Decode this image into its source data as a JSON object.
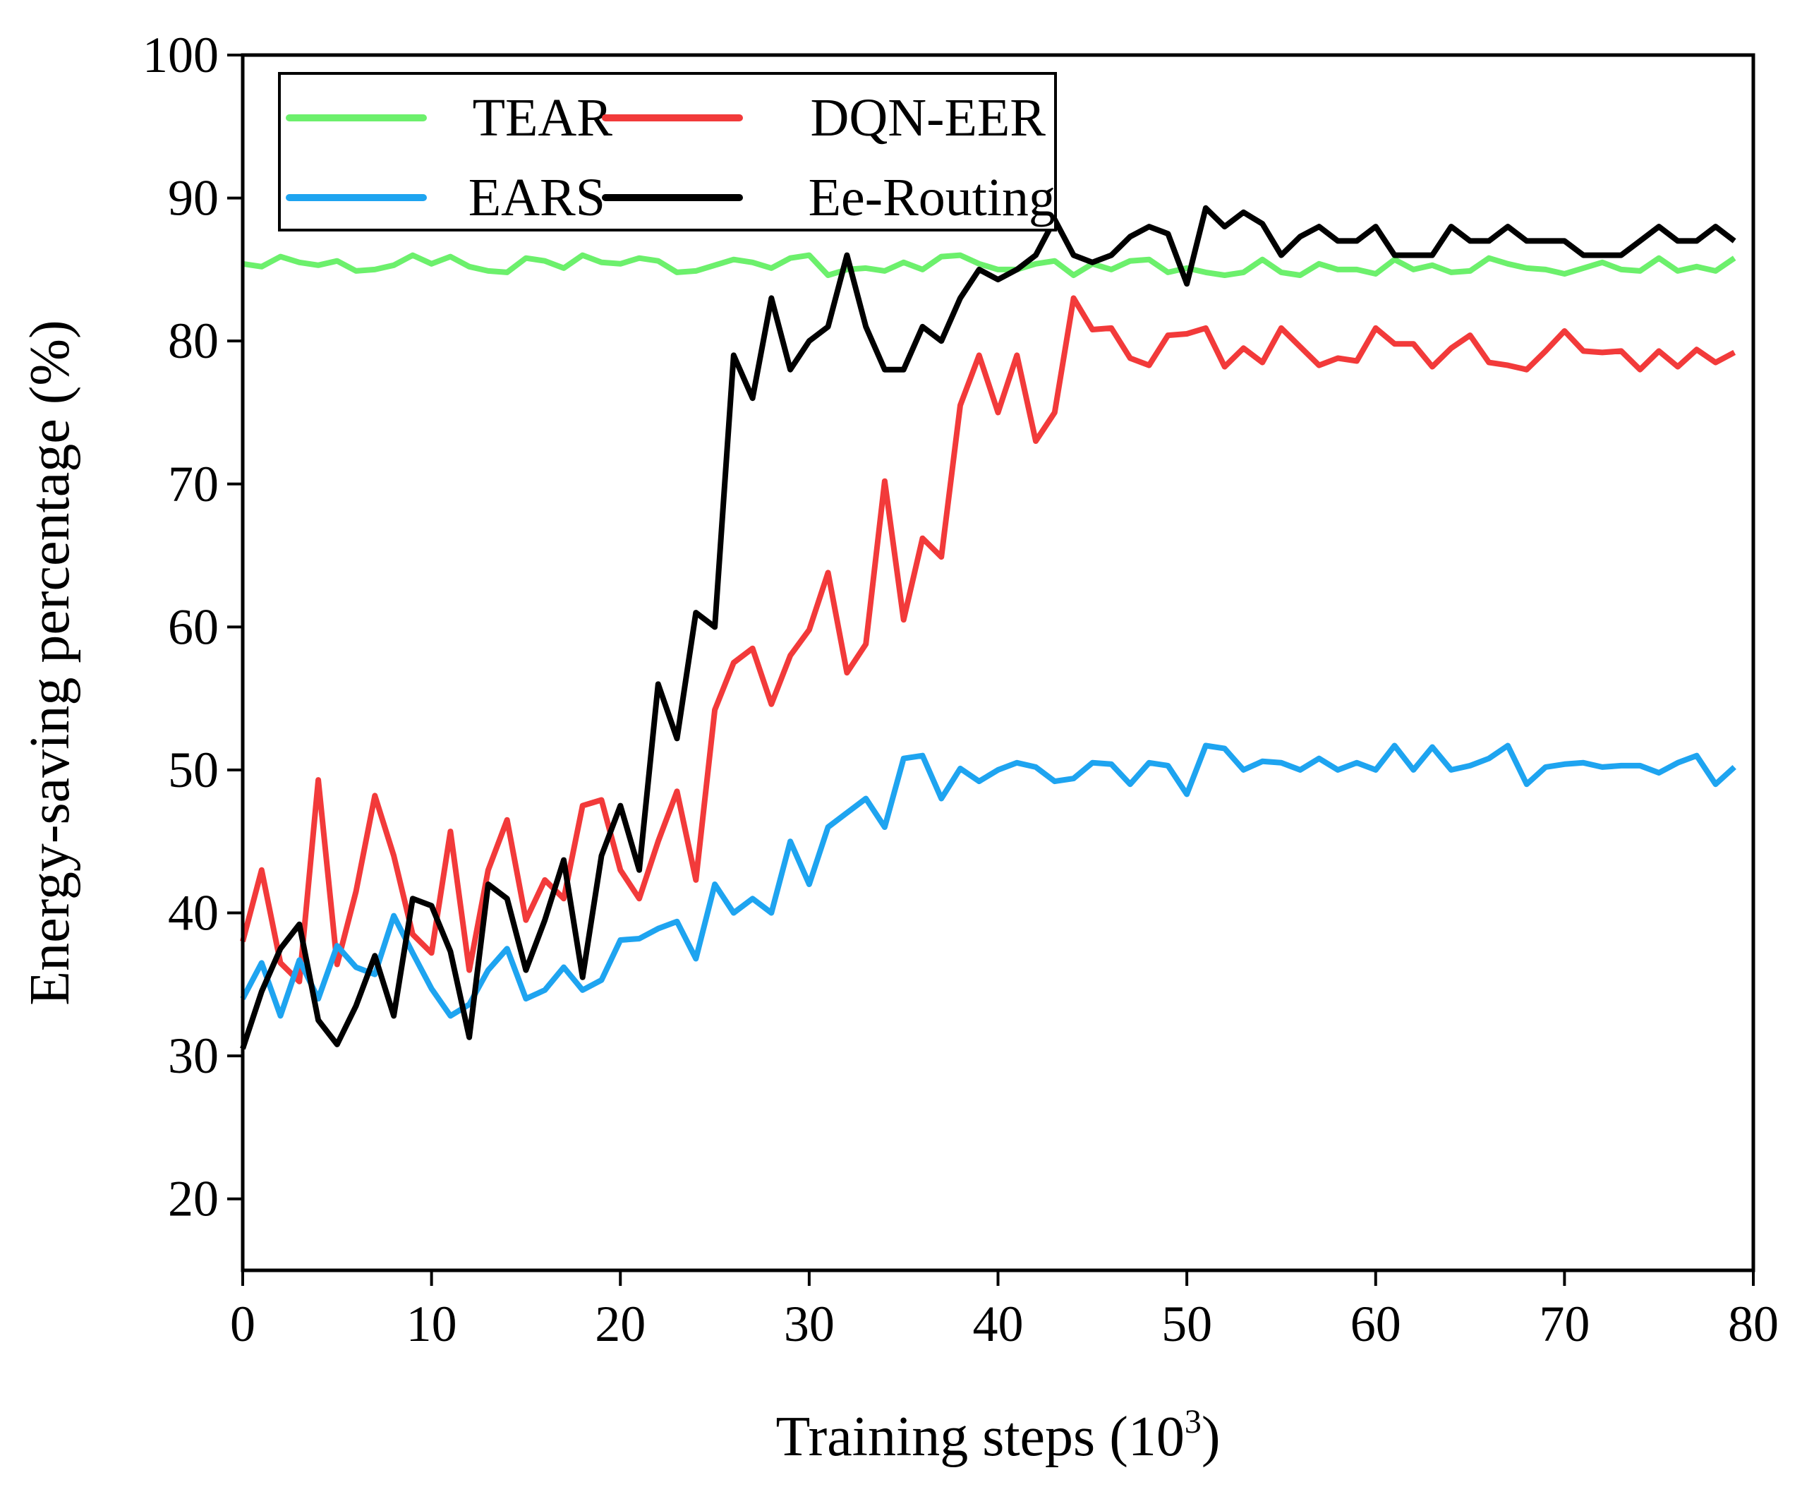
{
  "chart_data": {
    "type": "line",
    "title": "",
    "xlabel": "Training steps (10",
    "xlabel_sup": "3",
    "xlabel_suffix": ")",
    "ylabel": "Energy-saving percentage (%)",
    "xlim": [
      0,
      80
    ],
    "ylim": [
      15,
      100
    ],
    "xticks": [
      0,
      10,
      20,
      30,
      40,
      50,
      60,
      70,
      80
    ],
    "yticks": [
      20,
      30,
      40,
      50,
      60,
      70,
      80,
      90,
      100
    ],
    "grid": false,
    "legend_position": "top-left",
    "series": [
      {
        "name": "TEAR",
        "color": "#6cf06c",
        "x": [
          0,
          1,
          2,
          3,
          4,
          5,
          6,
          7,
          8,
          9,
          10,
          11,
          12,
          13,
          14,
          15,
          16,
          17,
          18,
          19,
          20,
          21,
          22,
          23,
          24,
          25,
          26,
          27,
          28,
          29,
          30,
          31,
          32,
          33,
          34,
          35,
          36,
          37,
          38,
          39,
          40,
          41,
          42,
          43,
          44,
          45,
          46,
          47,
          48,
          49,
          50,
          51,
          52,
          53,
          54,
          55,
          56,
          57,
          58,
          59,
          60,
          61,
          62,
          63,
          64,
          65,
          66,
          67,
          68,
          69,
          70,
          71,
          72,
          73,
          74,
          75,
          76,
          77,
          78,
          79
        ],
        "y": [
          85.4,
          85.2,
          85.9,
          85.5,
          85.3,
          85.6,
          84.9,
          85.0,
          85.3,
          86.0,
          85.4,
          85.9,
          85.2,
          84.9,
          84.8,
          85.8,
          85.6,
          85.1,
          86.0,
          85.5,
          85.4,
          85.8,
          85.6,
          84.8,
          84.9,
          85.3,
          85.7,
          85.5,
          85.1,
          85.8,
          86.0,
          84.6,
          85.0,
          85.1,
          84.9,
          85.5,
          85.0,
          85.9,
          86.0,
          85.4,
          85.0,
          85.0,
          85.4,
          85.6,
          84.6,
          85.4,
          85.0,
          85.6,
          85.7,
          84.8,
          85.1,
          84.8,
          84.6,
          84.8,
          85.7,
          84.8,
          84.6,
          85.4,
          85.0,
          85.0,
          84.7,
          85.7,
          85.0,
          85.3,
          84.8,
          84.9,
          85.8,
          85.4,
          85.1,
          85.0,
          84.7,
          85.1,
          85.5,
          85.0,
          84.9,
          85.8,
          84.9,
          85.2,
          84.9,
          85.8
        ]
      },
      {
        "name": "DQN-EER",
        "color": "#f23a3a",
        "x": [
          0,
          1,
          2,
          3,
          4,
          5,
          6,
          7,
          8,
          9,
          10,
          11,
          12,
          13,
          14,
          15,
          16,
          17,
          18,
          19,
          20,
          21,
          22,
          23,
          24,
          25,
          26,
          27,
          28,
          29,
          30,
          31,
          32,
          33,
          34,
          35,
          36,
          37,
          38,
          39,
          40,
          41,
          42,
          43,
          44,
          45,
          46,
          47,
          48,
          49,
          50,
          51,
          52,
          53,
          54,
          55,
          56,
          57,
          58,
          59,
          60,
          61,
          62,
          63,
          64,
          65,
          66,
          67,
          68,
          69,
          70,
          71,
          72,
          73,
          74,
          75,
          76,
          77,
          78,
          79
        ],
        "y": [
          38,
          43,
          36.5,
          35.2,
          49.3,
          36.4,
          41.5,
          48.2,
          44,
          38.5,
          37.2,
          45.7,
          36,
          43,
          46.5,
          39.5,
          42.3,
          41,
          47.5,
          47.9,
          43,
          41,
          45,
          48.5,
          42.3,
          54.2,
          57.5,
          58.5,
          54.6,
          58,
          59.8,
          63.8,
          56.8,
          58.8,
          70.2,
          60.5,
          66.2,
          64.9,
          75.5,
          79,
          75,
          79,
          73,
          75,
          83,
          80.8,
          80.9,
          78.8,
          78.3,
          80.4,
          80.5,
          80.9,
          78.2,
          79.5,
          78.5,
          80.9,
          79.6,
          78.3,
          78.8,
          78.6,
          80.9,
          79.8,
          79.8,
          78.2,
          79.5,
          80.4,
          78.5,
          78.3,
          78,
          79.3,
          80.7,
          79.3,
          79.2,
          79.3,
          78,
          79.3,
          78.2,
          79.4,
          78.5,
          79.2
        ]
      },
      {
        "name": "EARS",
        "color": "#1ea4f0",
        "x": [
          0,
          1,
          2,
          3,
          4,
          5,
          6,
          7,
          8,
          9,
          10,
          11,
          12,
          13,
          14,
          15,
          16,
          17,
          18,
          19,
          20,
          21,
          22,
          23,
          24,
          25,
          26,
          27,
          28,
          29,
          30,
          31,
          32,
          33,
          34,
          35,
          36,
          37,
          38,
          39,
          40,
          41,
          42,
          43,
          44,
          45,
          46,
          47,
          48,
          49,
          50,
          51,
          52,
          53,
          54,
          55,
          56,
          57,
          58,
          59,
          60,
          61,
          62,
          63,
          64,
          65,
          66,
          67,
          68,
          69,
          70,
          71,
          72,
          73,
          74,
          75,
          76,
          77,
          78,
          79
        ],
        "y": [
          34,
          36.5,
          32.8,
          36.7,
          34,
          37.7,
          36.2,
          35.7,
          39.8,
          37.2,
          34.7,
          32.8,
          33.6,
          36,
          37.5,
          34,
          34.6,
          36.2,
          34.6,
          35.3,
          38.1,
          38.2,
          38.9,
          39.4,
          36.8,
          42,
          40,
          41,
          40,
          45,
          42,
          46,
          47,
          48,
          46,
          50.8,
          51,
          48,
          50.1,
          49.2,
          50,
          50.5,
          50.2,
          49.2,
          49.4,
          50.5,
          50.4,
          49,
          50.5,
          50.3,
          48.3,
          51.7,
          51.5,
          50,
          50.6,
          50.5,
          50,
          50.8,
          50,
          50.5,
          50,
          51.7,
          50,
          51.6,
          50,
          50.3,
          50.8,
          51.7,
          49,
          50.2,
          50.4,
          50.5,
          50.2,
          50.3,
          50.3,
          49.8,
          50.5,
          51,
          49,
          50.2
        ]
      },
      {
        "name": "Ee-Routing",
        "color": "#000000",
        "x": [
          0,
          1,
          2,
          3,
          4,
          5,
          6,
          7,
          8,
          9,
          10,
          11,
          12,
          13,
          14,
          15,
          16,
          17,
          18,
          19,
          20,
          21,
          22,
          23,
          24,
          25,
          26,
          27,
          28,
          29,
          30,
          31,
          32,
          33,
          34,
          35,
          36,
          37,
          38,
          39,
          40,
          41,
          42,
          43,
          44,
          45,
          46,
          47,
          48,
          49,
          50,
          51,
          52,
          53,
          54,
          55,
          56,
          57,
          58,
          59,
          60,
          61,
          62,
          63,
          64,
          65,
          66,
          67,
          68,
          69,
          70,
          71,
          72,
          73,
          74,
          75,
          76,
          77,
          78,
          79
        ],
        "y": [
          30.5,
          34.5,
          37.5,
          39.2,
          32.5,
          30.8,
          33.5,
          37,
          32.8,
          41,
          40.5,
          37.3,
          31.3,
          42,
          41,
          36,
          39.5,
          43.7,
          35.5,
          44,
          47.5,
          43,
          56,
          52.2,
          61,
          60,
          79,
          76,
          83,
          78,
          80,
          81,
          86,
          81,
          78,
          78,
          81,
          80,
          83,
          85,
          84.3,
          85,
          86,
          88.5,
          86,
          85.5,
          86,
          87.3,
          88,
          87.5,
          84,
          89.3,
          88,
          89,
          88.2,
          86,
          87.3,
          88,
          87,
          87,
          88,
          86,
          86,
          86,
          88,
          87,
          87,
          88,
          87,
          87,
          87,
          86,
          86,
          86,
          87,
          88,
          87,
          87,
          88,
          87
        ]
      }
    ]
  }
}
